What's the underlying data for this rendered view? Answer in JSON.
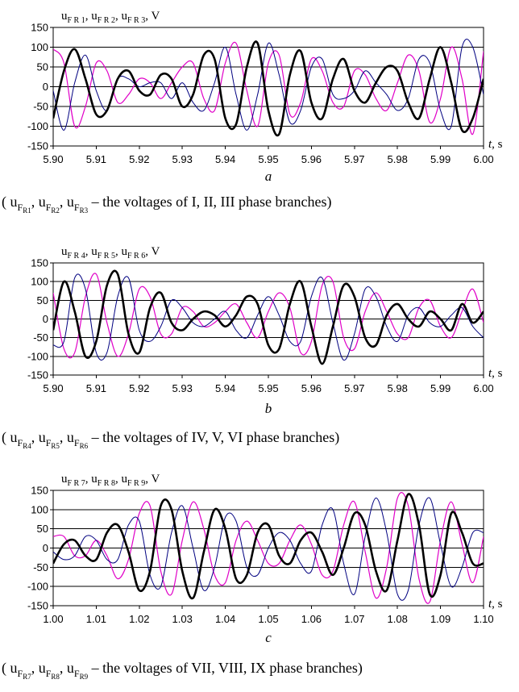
{
  "chart_data": [
    {
      "type": "line",
      "panel_label": "a",
      "y_label": {
        "base": "u",
        "parts": [
          [
            "F",
            "R",
            "1"
          ],
          [
            "F",
            "R",
            "2"
          ],
          [
            "F",
            "R",
            "3"
          ]
        ],
        "unit": "V"
      },
      "x_unit": "t, s",
      "xlim": [
        5.9,
        6.0
      ],
      "ylim": [
        -150,
        150
      ],
      "y_ticks": [
        150,
        100,
        50,
        0,
        -50,
        -100,
        -150
      ],
      "x_ticks": [
        "5.90",
        "5.91",
        "5.92",
        "5.93",
        "5.94",
        "5.95",
        "5.96",
        "5.97",
        "5.98",
        "5.99",
        "6.00"
      ],
      "grid": "horizontal",
      "caption": {
        "sub": [
          "1",
          "2",
          "3"
        ],
        "text": "– the voltages of I, II, III phase branches)"
      },
      "series": [
        {
          "color": "#000000",
          "width": 2.6,
          "x": [
            5.9,
            5.9025,
            5.905,
            5.9075,
            5.91,
            5.9125,
            5.915,
            5.9175,
            5.92,
            5.9225,
            5.925,
            5.9275,
            5.93,
            5.9325,
            5.935,
            5.9375,
            5.94,
            5.9425,
            5.945,
            5.9475,
            5.95,
            5.9525,
            5.955,
            5.9575,
            5.96,
            5.9625,
            5.965,
            5.9675,
            5.97,
            5.9725,
            5.975,
            5.9775,
            5.98,
            5.9825,
            5.985,
            5.9875,
            5.99,
            5.9925,
            5.995,
            5.9975,
            6.0
          ],
          "y": [
            -80,
            40,
            95,
            20,
            -70,
            -60,
            20,
            40,
            -10,
            -20,
            30,
            20,
            -50,
            -20,
            80,
            70,
            -80,
            -95,
            50,
            110,
            -60,
            -120,
            30,
            90,
            -40,
            -80,
            20,
            70,
            -10,
            -40,
            10,
            50,
            40,
            -40,
            -80,
            20,
            100,
            10,
            -110,
            -80,
            20
          ]
        },
        {
          "color": "#e000c8",
          "width": 1.2,
          "x": [
            5.9,
            5.9025,
            5.905,
            5.9075,
            5.91,
            5.9125,
            5.915,
            5.9175,
            5.92,
            5.9225,
            5.925,
            5.9275,
            5.93,
            5.9325,
            5.935,
            5.9375,
            5.94,
            5.9425,
            5.945,
            5.9475,
            5.95,
            5.9525,
            5.955,
            5.9575,
            5.96,
            5.9625,
            5.965,
            5.9675,
            5.97,
            5.9725,
            5.975,
            5.9775,
            5.98,
            5.9825,
            5.985,
            5.9875,
            5.99,
            5.9925,
            5.995,
            5.9975,
            6.0
          ],
          "y": [
            95,
            60,
            -100,
            -50,
            60,
            40,
            -40,
            -20,
            20,
            10,
            -30,
            10,
            50,
            60,
            -30,
            -60,
            60,
            110,
            -10,
            -100,
            60,
            80,
            -70,
            -40,
            70,
            40,
            -40,
            -50,
            40,
            30,
            -30,
            -60,
            10,
            80,
            40,
            -90,
            -30,
            100,
            20,
            -120,
            90
          ]
        },
        {
          "color": "#000080",
          "width": 1.0,
          "x": [
            5.9,
            5.9025,
            5.905,
            5.9075,
            5.91,
            5.9125,
            5.915,
            5.9175,
            5.92,
            5.9225,
            5.925,
            5.9275,
            5.93,
            5.9325,
            5.935,
            5.9375,
            5.94,
            5.9425,
            5.945,
            5.9475,
            5.95,
            5.9525,
            5.955,
            5.9575,
            5.96,
            5.9625,
            5.965,
            5.9675,
            5.97,
            5.9725,
            5.975,
            5.9775,
            5.98,
            5.9825,
            5.985,
            5.9875,
            5.99,
            5.9925,
            5.995,
            5.9975,
            6.0
          ],
          "y": [
            -10,
            -110,
            10,
            80,
            -10,
            -60,
            20,
            20,
            0,
            10,
            10,
            -30,
            10,
            -40,
            -60,
            10,
            100,
            -20,
            -110,
            -20,
            110,
            30,
            -90,
            -60,
            50,
            70,
            -20,
            -30,
            -10,
            40,
            10,
            -20,
            -60,
            -30,
            70,
            60,
            -60,
            -100,
            100,
            100,
            -20
          ]
        }
      ]
    },
    {
      "type": "line",
      "panel_label": "b",
      "y_label": {
        "base": "u",
        "parts": [
          [
            "F",
            "R",
            "4"
          ],
          [
            "F",
            "R",
            "5"
          ],
          [
            "F",
            "R",
            "6"
          ]
        ],
        "unit": "V"
      },
      "x_unit": "t, s",
      "xlim": [
        5.9,
        6.0
      ],
      "ylim": [
        -150,
        150
      ],
      "y_ticks": [
        150,
        100,
        50,
        0,
        -50,
        -100,
        -150
      ],
      "x_ticks": [
        "5.90",
        "5.91",
        "5.92",
        "5.93",
        "5.94",
        "5.95",
        "5.96",
        "5.97",
        "5.98",
        "5.99",
        "6.00"
      ],
      "grid": "horizontal",
      "caption": {
        "sub": [
          "4",
          "5",
          "6"
        ],
        "text": "– the voltages of IV, V, VI phase branches)"
      },
      "series": [
        {
          "color": "#000000",
          "width": 2.6,
          "x": [
            5.9,
            5.9025,
            5.905,
            5.9075,
            5.91,
            5.9125,
            5.915,
            5.9175,
            5.92,
            5.9225,
            5.925,
            5.9275,
            5.93,
            5.9325,
            5.935,
            5.9375,
            5.94,
            5.9425,
            5.945,
            5.9475,
            5.95,
            5.9525,
            5.955,
            5.9575,
            5.96,
            5.9625,
            5.965,
            5.9675,
            5.97,
            5.9725,
            5.975,
            5.9775,
            5.98,
            5.9825,
            5.985,
            5.9875,
            5.99,
            5.9925,
            5.995,
            5.9975,
            6.0
          ],
          "y": [
            -30,
            100,
            20,
            -100,
            -60,
            90,
            120,
            -40,
            -90,
            30,
            70,
            -10,
            -30,
            0,
            20,
            10,
            -20,
            10,
            60,
            40,
            -70,
            -80,
            40,
            100,
            -20,
            -120,
            -20,
            90,
            60,
            -50,
            -70,
            10,
            40,
            0,
            -20,
            20,
            0,
            -30,
            40,
            -10,
            20
          ]
        },
        {
          "color": "#e000c8",
          "width": 1.2,
          "x": [
            5.9,
            5.9025,
            5.905,
            5.9075,
            5.91,
            5.9125,
            5.915,
            5.9175,
            5.92,
            5.9225,
            5.925,
            5.9275,
            5.93,
            5.9325,
            5.935,
            5.9375,
            5.94,
            5.9425,
            5.945,
            5.9475,
            5.95,
            5.9525,
            5.955,
            5.9575,
            5.96,
            5.9625,
            5.965,
            5.9675,
            5.97,
            5.9725,
            5.975,
            5.9775,
            5.98,
            5.9825,
            5.985,
            5.9875,
            5.99,
            5.9925,
            5.995,
            5.9975,
            6.0
          ],
          "y": [
            70,
            -80,
            -90,
            60,
            120,
            -10,
            -100,
            -40,
            80,
            60,
            -40,
            -40,
            30,
            20,
            -20,
            -10,
            20,
            40,
            -10,
            -50,
            20,
            70,
            30,
            -90,
            -60,
            90,
            100,
            -50,
            -80,
            20,
            70,
            20,
            -40,
            -50,
            30,
            50,
            -20,
            -50,
            20,
            80,
            -10
          ]
        },
        {
          "color": "#000080",
          "width": 1.0,
          "x": [
            5.9,
            5.9025,
            5.905,
            5.9075,
            5.91,
            5.9125,
            5.915,
            5.9175,
            5.92,
            5.9225,
            5.925,
            5.9275,
            5.93,
            5.9325,
            5.935,
            5.9375,
            5.94,
            5.9425,
            5.945,
            5.9475,
            5.95,
            5.9525,
            5.955,
            5.9575,
            5.96,
            5.9625,
            5.965,
            5.9675,
            5.97,
            5.9725,
            5.975,
            5.9775,
            5.98,
            5.9825,
            5.985,
            5.9875,
            5.99,
            5.9925,
            5.995,
            5.9975,
            6.0
          ],
          "y": [
            -70,
            -60,
            110,
            80,
            -90,
            -90,
            60,
            110,
            -30,
            -60,
            -20,
            50,
            30,
            -10,
            -20,
            0,
            20,
            -30,
            -50,
            10,
            60,
            10,
            -60,
            -60,
            60,
            110,
            -10,
            -110,
            -40,
            80,
            60,
            -20,
            -60,
            10,
            30,
            -10,
            -20,
            10,
            30,
            -20,
            -50
          ]
        }
      ]
    },
    {
      "type": "line",
      "panel_label": "c",
      "y_label": {
        "base": "u",
        "parts": [
          [
            "F",
            "R",
            "7"
          ],
          [
            "F",
            "R",
            "8"
          ],
          [
            "F",
            "R",
            "9"
          ]
        ],
        "unit": "V"
      },
      "x_unit": "t, s",
      "xlim": [
        1.0,
        1.1
      ],
      "ylim": [
        -150,
        150
      ],
      "y_ticks": [
        150,
        100,
        50,
        0,
        -50,
        -100,
        -150
      ],
      "x_ticks": [
        "1.00",
        "1.01",
        "1.02",
        "1.03",
        "1.04",
        "1.05",
        "1.06",
        "1.07",
        "1.08",
        "1.09",
        "1.10"
      ],
      "grid": "horizontal",
      "caption": {
        "sub": [
          "7",
          "8",
          "9"
        ],
        "text": "– the voltages of VII, VIII, IX phase branches)"
      },
      "series": [
        {
          "color": "#000000",
          "width": 2.6,
          "x": [
            1.0,
            1.0025,
            1.005,
            1.0075,
            1.01,
            1.0125,
            1.015,
            1.0175,
            1.02,
            1.0225,
            1.025,
            1.0275,
            1.03,
            1.0325,
            1.035,
            1.0375,
            1.04,
            1.0425,
            1.045,
            1.0475,
            1.05,
            1.0525,
            1.055,
            1.0575,
            1.06,
            1.0625,
            1.065,
            1.0675,
            1.07,
            1.0725,
            1.075,
            1.0775,
            1.08,
            1.0825,
            1.085,
            1.0875,
            1.09,
            1.0925,
            1.095,
            1.0975,
            1.1
          ],
          "y": [
            -40,
            10,
            20,
            -20,
            -30,
            40,
            60,
            -10,
            -110,
            -60,
            110,
            100,
            -60,
            -130,
            -10,
            100,
            50,
            -80,
            -70,
            40,
            60,
            -20,
            -40,
            20,
            40,
            -10,
            -70,
            0,
            90,
            60,
            -60,
            -110,
            20,
            140,
            60,
            -120,
            -70,
            90,
            40,
            -40,
            -40
          ]
        },
        {
          "color": "#e000c8",
          "width": 1.2,
          "x": [
            1.0,
            1.0025,
            1.005,
            1.0075,
            1.01,
            1.0125,
            1.015,
            1.0175,
            1.02,
            1.0225,
            1.025,
            1.0275,
            1.03,
            1.0325,
            1.035,
            1.0375,
            1.04,
            1.0425,
            1.045,
            1.0475,
            1.05,
            1.0525,
            1.055,
            1.0575,
            1.06,
            1.0625,
            1.065,
            1.0675,
            1.07,
            1.0725,
            1.075,
            1.0775,
            1.08,
            1.0825,
            1.085,
            1.0875,
            1.09,
            1.0925,
            1.095,
            1.0975,
            1.1
          ],
          "y": [
            30,
            30,
            -20,
            -20,
            20,
            -20,
            -80,
            -30,
            90,
            110,
            -60,
            -120,
            20,
            120,
            50,
            -70,
            -90,
            20,
            70,
            20,
            -40,
            -40,
            20,
            60,
            10,
            -70,
            -60,
            60,
            120,
            -10,
            -130,
            -50,
            130,
            110,
            -80,
            -140,
            20,
            120,
            10,
            -90,
            30
          ]
        },
        {
          "color": "#000080",
          "width": 1.0,
          "x": [
            1.0,
            1.0025,
            1.005,
            1.0075,
            1.01,
            1.0125,
            1.015,
            1.0175,
            1.02,
            1.0225,
            1.025,
            1.0275,
            1.03,
            1.0325,
            1.035,
            1.0375,
            1.04,
            1.0425,
            1.045,
            1.0475,
            1.05,
            1.0525,
            1.055,
            1.0575,
            1.06,
            1.0625,
            1.065,
            1.0675,
            1.07,
            1.0725,
            1.075,
            1.0775,
            1.08,
            1.0825,
            1.085,
            1.0875,
            1.09,
            1.0925,
            1.095,
            1.0975,
            1.1
          ],
          "y": [
            -10,
            -30,
            -20,
            30,
            20,
            -30,
            -30,
            60,
            70,
            -70,
            -100,
            40,
            110,
            0,
            -110,
            -50,
            80,
            70,
            -50,
            -70,
            0,
            40,
            20,
            -40,
            -60,
            60,
            100,
            -40,
            -120,
            30,
            130,
            40,
            -120,
            -110,
            60,
            130,
            10,
            -100,
            -50,
            40,
            40
          ]
        }
      ]
    }
  ]
}
